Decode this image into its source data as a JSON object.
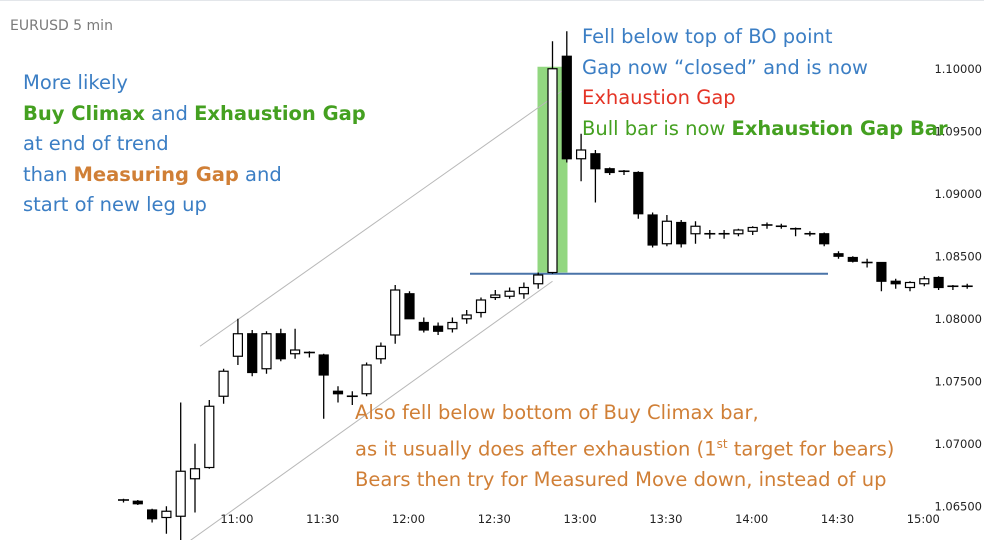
{
  "symbol": "EURUSD 5 min",
  "annotations": {
    "left": {
      "l1": "More likely",
      "l2a": "Buy Climax",
      "l2b": " and ",
      "l2c": "Exhaustion Gap",
      "l3": "at end of trend",
      "l4a": "than ",
      "l4b": "Measuring Gap",
      "l4c": " and",
      "l5": "start of new leg up"
    },
    "right": {
      "l1": "Fell below top of BO point",
      "l2": "Gap now “closed” and is now",
      "l3": "Exhaustion Gap",
      "l4a": "Bull bar is now ",
      "l4b": "Exhaustion Gap Bar"
    },
    "bottom": {
      "l1": "Also fell below bottom of Buy Climax bar,",
      "l2a": "as it usually does after exhaustion (1",
      "l2sup": "st",
      "l2b": " target for bears)",
      "l3": "Bears then try for Measured Move down, instead of up"
    }
  },
  "colors": {
    "bull_body": "#ffffff",
    "bear_body": "#000000",
    "gap_highlight": "#7fd06a",
    "bo_line": "#4a74a8",
    "channel_line": "#b8b8b8"
  },
  "chart_data": {
    "type": "candlestick",
    "title": "EURUSD 5 min",
    "ylim": [
      1.0623,
      1.1055
    ],
    "yticks": [
      1.065,
      1.07,
      1.075,
      1.08,
      1.085,
      1.09,
      1.095,
      1.1
    ],
    "ytick_labels": [
      "1.06500",
      "1.07000",
      "1.07500",
      "1.08000",
      "1.08500",
      "1.09000",
      "1.09500",
      "1.10000"
    ],
    "xticks": [
      "11:00",
      "11:30",
      "12:00",
      "12:30",
      "13:00",
      "13:30",
      "14:00",
      "14:30",
      "15:00"
    ],
    "xtick_bar_index": [
      8,
      14,
      20,
      26,
      32,
      38,
      44,
      50,
      56
    ],
    "bars": [
      {
        "o": 1.0655,
        "h": 1.0656,
        "l": 1.0653,
        "c": 1.0654
      },
      {
        "o": 1.0654,
        "h": 1.0655,
        "l": 1.0651,
        "c": 1.0652
      },
      {
        "o": 1.0647,
        "h": 1.0648,
        "l": 1.0637,
        "c": 1.064
      },
      {
        "o": 1.0641,
        "h": 1.065,
        "l": 1.0628,
        "c": 1.0646
      },
      {
        "o": 1.0642,
        "h": 1.0733,
        "l": 1.062,
        "c": 1.0678
      },
      {
        "o": 1.0672,
        "h": 1.07,
        "l": 1.0645,
        "c": 1.068
      },
      {
        "o": 1.0681,
        "h": 1.0735,
        "l": 1.068,
        "c": 1.073
      },
      {
        "o": 1.0738,
        "h": 1.076,
        "l": 1.0732,
        "c": 1.0758
      },
      {
        "o": 1.077,
        "h": 1.08,
        "l": 1.0763,
        "c": 1.0788
      },
      {
        "o": 1.0788,
        "h": 1.0791,
        "l": 1.0754,
        "c": 1.0757
      },
      {
        "o": 1.076,
        "h": 1.079,
        "l": 1.0756,
        "c": 1.0788
      },
      {
        "o": 1.0788,
        "h": 1.0792,
        "l": 1.0766,
        "c": 1.0768
      },
      {
        "o": 1.0772,
        "h": 1.0792,
        "l": 1.0768,
        "c": 1.0775
      },
      {
        "o": 1.0773,
        "h": 1.0774,
        "l": 1.0769,
        "c": 1.0772
      },
      {
        "o": 1.0771,
        "h": 1.0772,
        "l": 1.072,
        "c": 1.0755
      },
      {
        "o": 1.0742,
        "h": 1.0746,
        "l": 1.0733,
        "c": 1.074
      },
      {
        "o": 1.0738,
        "h": 1.0742,
        "l": 1.0731,
        "c": 1.0738
      },
      {
        "o": 1.074,
        "h": 1.0765,
        "l": 1.0738,
        "c": 1.0763
      },
      {
        "o": 1.0768,
        "h": 1.0781,
        "l": 1.0764,
        "c": 1.0778
      },
      {
        "o": 1.0787,
        "h": 1.0827,
        "l": 1.078,
        "c": 1.0823
      },
      {
        "o": 1.082,
        "h": 1.0822,
        "l": 1.08,
        "c": 1.08
      },
      {
        "o": 1.0797,
        "h": 1.0801,
        "l": 1.0789,
        "c": 1.0791
      },
      {
        "o": 1.0794,
        "h": 1.0797,
        "l": 1.0787,
        "c": 1.079
      },
      {
        "o": 1.0792,
        "h": 1.0801,
        "l": 1.0789,
        "c": 1.0797
      },
      {
        "o": 1.08,
        "h": 1.0807,
        "l": 1.0796,
        "c": 1.0803
      },
      {
        "o": 1.0805,
        "h": 1.0817,
        "l": 1.0801,
        "c": 1.0815
      },
      {
        "o": 1.0817,
        "h": 1.0823,
        "l": 1.0815,
        "c": 1.0819
      },
      {
        "o": 1.0818,
        "h": 1.0825,
        "l": 1.0816,
        "c": 1.0822
      },
      {
        "o": 1.082,
        "h": 1.0829,
        "l": 1.0816,
        "c": 1.0825
      },
      {
        "o": 1.0828,
        "h": 1.0837,
        "l": 1.0824,
        "c": 1.0835
      },
      {
        "o": 1.0837,
        "h": 1.1022,
        "l": 1.0836,
        "c": 1.1
      },
      {
        "o": 1.101,
        "h": 1.103,
        "l": 1.0925,
        "c": 1.0928
      },
      {
        "o": 1.0928,
        "h": 1.0948,
        "l": 1.091,
        "c": 1.0935
      },
      {
        "o": 1.0932,
        "h": 1.0935,
        "l": 1.0893,
        "c": 1.092
      },
      {
        "o": 1.092,
        "h": 1.0921,
        "l": 1.0915,
        "c": 1.0917
      },
      {
        "o": 1.0918,
        "h": 1.0919,
        "l": 1.0915,
        "c": 1.0917
      },
      {
        "o": 1.0917,
        "h": 1.0918,
        "l": 1.088,
        "c": 1.0884
      },
      {
        "o": 1.0883,
        "h": 1.0885,
        "l": 1.0857,
        "c": 1.0859
      },
      {
        "o": 1.086,
        "h": 1.0883,
        "l": 1.0858,
        "c": 1.0878
      },
      {
        "o": 1.0877,
        "h": 1.0879,
        "l": 1.0857,
        "c": 1.086
      },
      {
        "o": 1.0868,
        "h": 1.0878,
        "l": 1.086,
        "c": 1.0874
      },
      {
        "o": 1.0868,
        "h": 1.0871,
        "l": 1.0864,
        "c": 1.0868
      },
      {
        "o": 1.0868,
        "h": 1.0871,
        "l": 1.0864,
        "c": 1.0868
      },
      {
        "o": 1.0868,
        "h": 1.0872,
        "l": 1.0866,
        "c": 1.0871
      },
      {
        "o": 1.087,
        "h": 1.0874,
        "l": 1.0867,
        "c": 1.0873
      },
      {
        "o": 1.0875,
        "h": 1.0877,
        "l": 1.0872,
        "c": 1.0874
      },
      {
        "o": 1.0874,
        "h": 1.0876,
        "l": 1.0872,
        "c": 1.0874
      },
      {
        "o": 1.0872,
        "h": 1.0873,
        "l": 1.0866,
        "c": 1.0871
      },
      {
        "o": 1.0868,
        "h": 1.087,
        "l": 1.0866,
        "c": 1.0868
      },
      {
        "o": 1.0868,
        "h": 1.0869,
        "l": 1.0858,
        "c": 1.086
      },
      {
        "o": 1.0852,
        "h": 1.0854,
        "l": 1.0848,
        "c": 1.085
      },
      {
        "o": 1.0849,
        "h": 1.085,
        "l": 1.0845,
        "c": 1.0846
      },
      {
        "o": 1.0845,
        "h": 1.0848,
        "l": 1.0841,
        "c": 1.0845
      },
      {
        "o": 1.0845,
        "h": 1.0845,
        "l": 1.0822,
        "c": 1.083
      },
      {
        "o": 1.083,
        "h": 1.0832,
        "l": 1.0824,
        "c": 1.0828
      },
      {
        "o": 1.0825,
        "h": 1.083,
        "l": 1.0822,
        "c": 1.0829
      },
      {
        "o": 1.0828,
        "h": 1.0834,
        "l": 1.0826,
        "c": 1.0832
      },
      {
        "o": 1.0833,
        "h": 1.0834,
        "l": 1.0823,
        "c": 1.0825
      },
      {
        "o": 1.0826,
        "h": 1.0827,
        "l": 1.0823,
        "c": 1.0825
      },
      {
        "o": 1.0826,
        "h": 1.0828,
        "l": 1.0824,
        "c": 1.0826
      }
    ],
    "highlight_bar_index": 30,
    "breakout_level": 1.0836,
    "channel": {
      "upper": [
        {
          "bar": 5,
          "price": 1.0778
        },
        {
          "bar": 31,
          "price": 1.0985
        }
      ],
      "lower": [
        {
          "bar": 4,
          "price": 1.062
        },
        {
          "bar": 30,
          "price": 1.083
        }
      ]
    }
  }
}
